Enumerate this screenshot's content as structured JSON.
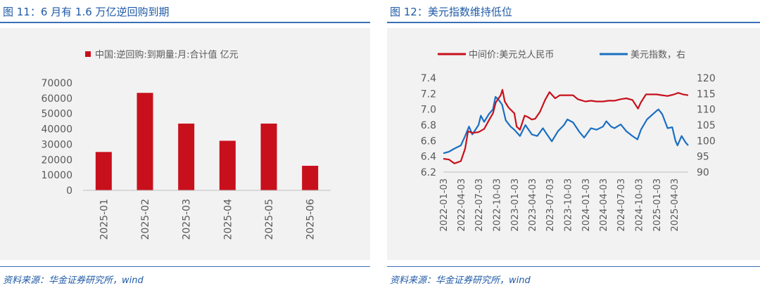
{
  "left": {
    "title": "图 11：6 月有 1.6 万亿逆回购到期",
    "source": "资料来源：华金证券研究所，wind",
    "chart_data": {
      "type": "bar",
      "legend": [
        "中国:逆回购:到期量:月:合计值 亿元"
      ],
      "legend_position": "top",
      "categories": [
        "2025-01",
        "2025-02",
        "2025-03",
        "2025-04",
        "2025-05",
        "2025-06"
      ],
      "series": [
        {
          "name": "中国:逆回购:到期量:月:合计值 亿元",
          "values": [
            25000,
            63500,
            43500,
            32300,
            43500,
            16000
          ]
        }
      ],
      "ylim": [
        0,
        70000
      ],
      "yticks": [
        "0",
        "10000",
        "20000",
        "30000",
        "40000",
        "50000",
        "60000",
        "70000"
      ],
      "grid": false,
      "color": "#c8101c"
    }
  },
  "right": {
    "title": "图 12：美元指数维持低位",
    "source": "资料来源：华金证券研究所，wind",
    "chart_data": {
      "type": "line",
      "legend_position": "top",
      "grid": false,
      "x_ticks": [
        "2022-01-03",
        "2022-04-03",
        "2022-07-03",
        "2022-10-03",
        "2023-01-03",
        "2023-04-03",
        "2023-07-03",
        "2023-10-03",
        "2024-01-03",
        "2024-04-03",
        "2024-07-03",
        "2024-10-03",
        "2025-01-03",
        "2025-04-03"
      ],
      "y_left": {
        "ylim": [
          6.2,
          7.4
        ],
        "ticks": [
          "6.2",
          "6.4",
          "6.6",
          "6.8",
          "7.0",
          "7.2",
          "7.4"
        ]
      },
      "y_right": {
        "ylim": [
          90,
          120
        ],
        "ticks": [
          "90",
          "95",
          "100",
          "105",
          "110",
          "115",
          "120"
        ]
      },
      "series": [
        {
          "name": "中间价:美元兑人民币",
          "axis": "left",
          "color": "#c8101c",
          "points": [
            [
              "2022-01-03",
              6.37
            ],
            [
              "2022-02-01",
              6.36
            ],
            [
              "2022-03-01",
              6.31
            ],
            [
              "2022-04-03",
              6.34
            ],
            [
              "2022-04-25",
              6.5
            ],
            [
              "2022-05-10",
              6.72
            ],
            [
              "2022-06-01",
              6.7
            ],
            [
              "2022-07-03",
              6.71
            ],
            [
              "2022-08-01",
              6.75
            ],
            [
              "2022-08-25",
              6.86
            ],
            [
              "2022-09-15",
              6.95
            ],
            [
              "2022-09-30",
              7.09
            ],
            [
              "2022-10-25",
              7.18
            ],
            [
              "2022-11-03",
              7.25
            ],
            [
              "2022-11-15",
              7.1
            ],
            [
              "2022-12-05",
              7.02
            ],
            [
              "2023-01-03",
              6.95
            ],
            [
              "2023-01-15",
              6.78
            ],
            [
              "2023-02-01",
              6.74
            ],
            [
              "2023-02-25",
              6.92
            ],
            [
              "2023-03-15",
              6.9
            ],
            [
              "2023-04-03",
              6.87
            ],
            [
              "2023-04-20",
              6.88
            ],
            [
              "2023-05-15",
              6.97
            ],
            [
              "2023-06-10",
              7.12
            ],
            [
              "2023-07-03",
              7.22
            ],
            [
              "2023-08-01",
              7.14
            ],
            [
              "2023-08-25",
              7.18
            ],
            [
              "2023-09-15",
              7.18
            ],
            [
              "2023-10-03",
              7.18
            ],
            [
              "2023-11-01",
              7.18
            ],
            [
              "2023-11-25",
              7.13
            ],
            [
              "2024-01-03",
              7.1
            ],
            [
              "2024-02-01",
              7.11
            ],
            [
              "2024-03-01",
              7.1
            ],
            [
              "2024-04-03",
              7.1
            ],
            [
              "2024-05-01",
              7.11
            ],
            [
              "2024-06-01",
              7.11
            ],
            [
              "2024-07-03",
              7.13
            ],
            [
              "2024-08-01",
              7.14
            ],
            [
              "2024-09-01",
              7.12
            ],
            [
              "2024-09-30",
              7.01
            ],
            [
              "2024-10-15",
              7.09
            ],
            [
              "2024-11-10",
              7.19
            ],
            [
              "2025-01-03",
              7.19
            ],
            [
              "2025-02-01",
              7.18
            ],
            [
              "2025-03-01",
              7.17
            ],
            [
              "2025-04-03",
              7.19
            ],
            [
              "2025-04-25",
              7.21
            ],
            [
              "2025-05-20",
              7.19
            ],
            [
              "2025-06-15",
              7.18
            ]
          ]
        },
        {
          "name": "美元指数，右",
          "axis": "right",
          "color": "#1a6fc2",
          "points": [
            [
              "2022-01-03",
              96.0
            ],
            [
              "2022-02-01",
              96.5
            ],
            [
              "2022-03-01",
              97.5
            ],
            [
              "2022-04-03",
              98.5
            ],
            [
              "2022-04-25",
              101.5
            ],
            [
              "2022-05-15",
              104.5
            ],
            [
              "2022-06-01",
              102.0
            ],
            [
              "2022-07-03",
              105.0
            ],
            [
              "2022-07-15",
              108.0
            ],
            [
              "2022-08-01",
              106.0
            ],
            [
              "2022-08-25",
              108.5
            ],
            [
              "2022-09-15",
              110.0
            ],
            [
              "2022-09-28",
              114.0
            ],
            [
              "2022-10-15",
              113.0
            ],
            [
              "2022-11-01",
              111.5
            ],
            [
              "2022-11-20",
              106.5
            ],
            [
              "2022-12-15",
              104.5
            ],
            [
              "2023-01-03",
              103.5
            ],
            [
              "2023-02-01",
              101.5
            ],
            [
              "2023-03-01",
              105.0
            ],
            [
              "2023-04-03",
              102.0
            ],
            [
              "2023-05-01",
              101.5
            ],
            [
              "2023-05-30",
              104.0
            ],
            [
              "2023-06-15",
              102.5
            ],
            [
              "2023-07-15",
              99.8
            ],
            [
              "2023-08-15",
              103.0
            ],
            [
              "2023-09-15",
              105.0
            ],
            [
              "2023-10-03",
              106.8
            ],
            [
              "2023-11-01",
              105.8
            ],
            [
              "2023-12-01",
              103.0
            ],
            [
              "2023-12-28",
              101.0
            ],
            [
              "2024-02-01",
              104.0
            ],
            [
              "2024-03-01",
              103.5
            ],
            [
              "2024-04-03",
              104.5
            ],
            [
              "2024-04-20",
              106.2
            ],
            [
              "2024-05-15",
              104.5
            ],
            [
              "2024-06-01",
              104.0
            ],
            [
              "2024-07-03",
              105.2
            ],
            [
              "2024-08-01",
              103.0
            ],
            [
              "2024-09-01",
              101.5
            ],
            [
              "2024-09-27",
              100.4
            ],
            [
              "2024-10-15",
              103.5
            ],
            [
              "2024-11-15",
              106.8
            ],
            [
              "2025-01-03",
              109.5
            ],
            [
              "2025-01-13",
              110.0
            ],
            [
              "2025-02-01",
              108.5
            ],
            [
              "2025-03-01",
              104.0
            ],
            [
              "2025-03-25",
              104.3
            ],
            [
              "2025-04-10",
              100.0
            ],
            [
              "2025-04-21",
              98.5
            ],
            [
              "2025-05-12",
              101.5
            ],
            [
              "2025-06-01",
              99.5
            ],
            [
              "2025-06-15",
              98.5
            ]
          ]
        }
      ]
    }
  }
}
